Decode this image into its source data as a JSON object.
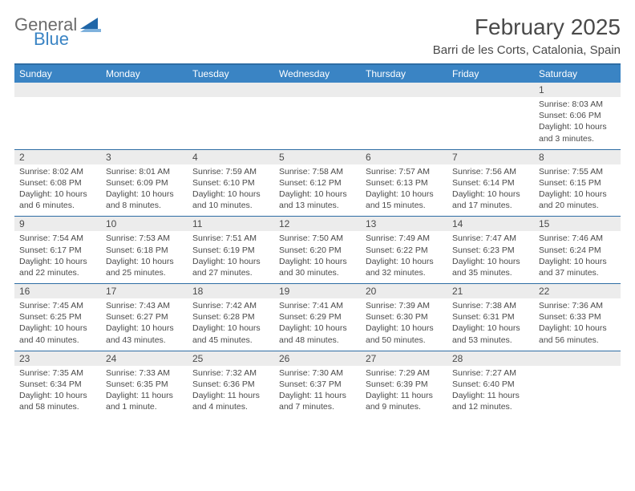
{
  "logo": {
    "text1": "General",
    "text2": "Blue",
    "tri_color": "#1f66a8"
  },
  "title": "February 2025",
  "location": "Barri de les Corts, Catalonia, Spain",
  "colors": {
    "header_bg": "#3a84c4",
    "header_border": "#2e6da4",
    "numrow_bg": "#ececec",
    "text": "#4a4a4a"
  },
  "dow": [
    "Sunday",
    "Monday",
    "Tuesday",
    "Wednesday",
    "Thursday",
    "Friday",
    "Saturday"
  ],
  "weeks": [
    [
      {
        "n": "",
        "s": "",
        "t": "",
        "d": ""
      },
      {
        "n": "",
        "s": "",
        "t": "",
        "d": ""
      },
      {
        "n": "",
        "s": "",
        "t": "",
        "d": ""
      },
      {
        "n": "",
        "s": "",
        "t": "",
        "d": ""
      },
      {
        "n": "",
        "s": "",
        "t": "",
        "d": ""
      },
      {
        "n": "",
        "s": "",
        "t": "",
        "d": ""
      },
      {
        "n": "1",
        "s": "Sunrise: 8:03 AM",
        "t": "Sunset: 6:06 PM",
        "d": "Daylight: 10 hours and 3 minutes."
      }
    ],
    [
      {
        "n": "2",
        "s": "Sunrise: 8:02 AM",
        "t": "Sunset: 6:08 PM",
        "d": "Daylight: 10 hours and 6 minutes."
      },
      {
        "n": "3",
        "s": "Sunrise: 8:01 AM",
        "t": "Sunset: 6:09 PM",
        "d": "Daylight: 10 hours and 8 minutes."
      },
      {
        "n": "4",
        "s": "Sunrise: 7:59 AM",
        "t": "Sunset: 6:10 PM",
        "d": "Daylight: 10 hours and 10 minutes."
      },
      {
        "n": "5",
        "s": "Sunrise: 7:58 AM",
        "t": "Sunset: 6:12 PM",
        "d": "Daylight: 10 hours and 13 minutes."
      },
      {
        "n": "6",
        "s": "Sunrise: 7:57 AM",
        "t": "Sunset: 6:13 PM",
        "d": "Daylight: 10 hours and 15 minutes."
      },
      {
        "n": "7",
        "s": "Sunrise: 7:56 AM",
        "t": "Sunset: 6:14 PM",
        "d": "Daylight: 10 hours and 17 minutes."
      },
      {
        "n": "8",
        "s": "Sunrise: 7:55 AM",
        "t": "Sunset: 6:15 PM",
        "d": "Daylight: 10 hours and 20 minutes."
      }
    ],
    [
      {
        "n": "9",
        "s": "Sunrise: 7:54 AM",
        "t": "Sunset: 6:17 PM",
        "d": "Daylight: 10 hours and 22 minutes."
      },
      {
        "n": "10",
        "s": "Sunrise: 7:53 AM",
        "t": "Sunset: 6:18 PM",
        "d": "Daylight: 10 hours and 25 minutes."
      },
      {
        "n": "11",
        "s": "Sunrise: 7:51 AM",
        "t": "Sunset: 6:19 PM",
        "d": "Daylight: 10 hours and 27 minutes."
      },
      {
        "n": "12",
        "s": "Sunrise: 7:50 AM",
        "t": "Sunset: 6:20 PM",
        "d": "Daylight: 10 hours and 30 minutes."
      },
      {
        "n": "13",
        "s": "Sunrise: 7:49 AM",
        "t": "Sunset: 6:22 PM",
        "d": "Daylight: 10 hours and 32 minutes."
      },
      {
        "n": "14",
        "s": "Sunrise: 7:47 AM",
        "t": "Sunset: 6:23 PM",
        "d": "Daylight: 10 hours and 35 minutes."
      },
      {
        "n": "15",
        "s": "Sunrise: 7:46 AM",
        "t": "Sunset: 6:24 PM",
        "d": "Daylight: 10 hours and 37 minutes."
      }
    ],
    [
      {
        "n": "16",
        "s": "Sunrise: 7:45 AM",
        "t": "Sunset: 6:25 PM",
        "d": "Daylight: 10 hours and 40 minutes."
      },
      {
        "n": "17",
        "s": "Sunrise: 7:43 AM",
        "t": "Sunset: 6:27 PM",
        "d": "Daylight: 10 hours and 43 minutes."
      },
      {
        "n": "18",
        "s": "Sunrise: 7:42 AM",
        "t": "Sunset: 6:28 PM",
        "d": "Daylight: 10 hours and 45 minutes."
      },
      {
        "n": "19",
        "s": "Sunrise: 7:41 AM",
        "t": "Sunset: 6:29 PM",
        "d": "Daylight: 10 hours and 48 minutes."
      },
      {
        "n": "20",
        "s": "Sunrise: 7:39 AM",
        "t": "Sunset: 6:30 PM",
        "d": "Daylight: 10 hours and 50 minutes."
      },
      {
        "n": "21",
        "s": "Sunrise: 7:38 AM",
        "t": "Sunset: 6:31 PM",
        "d": "Daylight: 10 hours and 53 minutes."
      },
      {
        "n": "22",
        "s": "Sunrise: 7:36 AM",
        "t": "Sunset: 6:33 PM",
        "d": "Daylight: 10 hours and 56 minutes."
      }
    ],
    [
      {
        "n": "23",
        "s": "Sunrise: 7:35 AM",
        "t": "Sunset: 6:34 PM",
        "d": "Daylight: 10 hours and 58 minutes."
      },
      {
        "n": "24",
        "s": "Sunrise: 7:33 AM",
        "t": "Sunset: 6:35 PM",
        "d": "Daylight: 11 hours and 1 minute."
      },
      {
        "n": "25",
        "s": "Sunrise: 7:32 AM",
        "t": "Sunset: 6:36 PM",
        "d": "Daylight: 11 hours and 4 minutes."
      },
      {
        "n": "26",
        "s": "Sunrise: 7:30 AM",
        "t": "Sunset: 6:37 PM",
        "d": "Daylight: 11 hours and 7 minutes."
      },
      {
        "n": "27",
        "s": "Sunrise: 7:29 AM",
        "t": "Sunset: 6:39 PM",
        "d": "Daylight: 11 hours and 9 minutes."
      },
      {
        "n": "28",
        "s": "Sunrise: 7:27 AM",
        "t": "Sunset: 6:40 PM",
        "d": "Daylight: 11 hours and 12 minutes."
      },
      {
        "n": "",
        "s": "",
        "t": "",
        "d": ""
      }
    ]
  ]
}
